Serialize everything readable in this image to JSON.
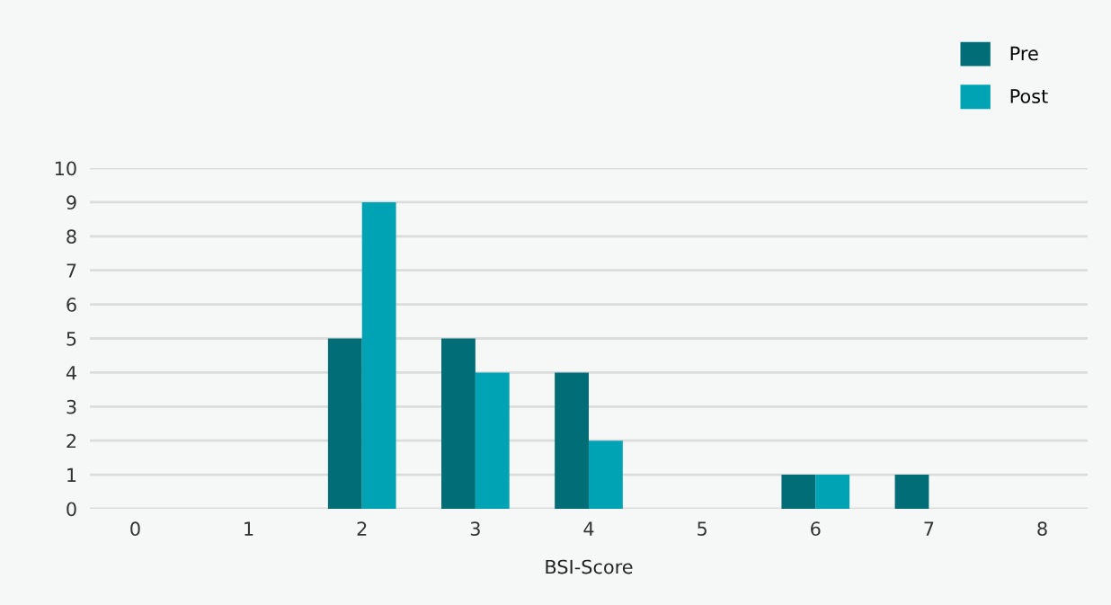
{
  "chart_data": {
    "type": "bar",
    "xlabel": "BSI-Score",
    "categories": [
      "0",
      "1",
      "2",
      "3",
      "4",
      "5",
      "6",
      "7",
      "8"
    ],
    "series": [
      {
        "name": "Pre",
        "color": "#006d77",
        "values": [
          0,
          0,
          5,
          5,
          4,
          0,
          1,
          1,
          0
        ]
      },
      {
        "name": "Post",
        "color": "#00a3b4",
        "values": [
          0,
          0,
          9,
          4,
          2,
          0,
          1,
          0,
          0
        ]
      }
    ],
    "ylim": [
      0,
      10
    ],
    "yticks": [
      0,
      1,
      2,
      3,
      4,
      5,
      6,
      7,
      8,
      9,
      10
    ],
    "grid": "y",
    "legend": "top right"
  }
}
